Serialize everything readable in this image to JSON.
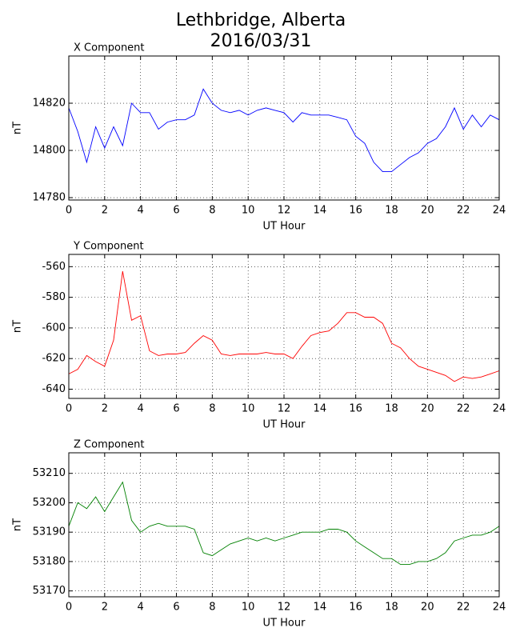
{
  "suptitle": [
    "Lethbridge, Alberta",
    "2016/03/31"
  ],
  "chart_data": [
    {
      "type": "line",
      "title": "X Component",
      "xlabel": "UT Hour",
      "ylabel": "nT",
      "color": "#0000ff",
      "grid": true,
      "xlim": [
        0,
        24
      ],
      "xticks": [
        0,
        2,
        4,
        6,
        8,
        10,
        12,
        14,
        16,
        18,
        20,
        22,
        24
      ],
      "ylim": [
        14779,
        14840
      ],
      "yticks": [
        14780,
        14800,
        14820
      ],
      "x": [
        0,
        0.5,
        1,
        1.5,
        2,
        2.5,
        3,
        3.5,
        4,
        4.5,
        5,
        5.5,
        6,
        6.5,
        7,
        7.5,
        8,
        8.5,
        9,
        9.5,
        10,
        10.5,
        11,
        11.5,
        12,
        12.5,
        13,
        13.5,
        14,
        14.5,
        15,
        15.5,
        16,
        16.5,
        17,
        17.5,
        18,
        18.5,
        19,
        19.5,
        20,
        20.5,
        21,
        21.5,
        22,
        22.5,
        23,
        23.5,
        24
      ],
      "values": [
        14818,
        14808,
        14795,
        14810,
        14801,
        14810,
        14802,
        14820,
        14816,
        14816,
        14809,
        14812,
        14813,
        14813,
        14815,
        14826,
        14820,
        14817,
        14816,
        14817,
        14815,
        14817,
        14818,
        14817,
        14816,
        14812,
        14816,
        14815,
        14815,
        14815,
        14814,
        14813,
        14806,
        14803,
        14795,
        14791,
        14791,
        14794,
        14797,
        14799,
        14803,
        14805,
        14810,
        14818,
        14809,
        14815,
        14810,
        14815,
        14813
      ]
    },
    {
      "type": "line",
      "title": "Y Component",
      "xlabel": "UT Hour",
      "ylabel": "nT",
      "color": "#ff0000",
      "grid": true,
      "xlim": [
        0,
        24
      ],
      "xticks": [
        0,
        2,
        4,
        6,
        8,
        10,
        12,
        14,
        16,
        18,
        20,
        22,
        24
      ],
      "ylim": [
        -646,
        -552
      ],
      "yticks": [
        -640,
        -620,
        -600,
        -580,
        -560
      ],
      "x": [
        0,
        0.5,
        1,
        1.5,
        2,
        2.5,
        3,
        3.5,
        4,
        4.5,
        5,
        5.5,
        6,
        6.5,
        7,
        7.5,
        8,
        8.5,
        9,
        9.5,
        10,
        10.5,
        11,
        11.5,
        12,
        12.5,
        13,
        13.5,
        14,
        14.5,
        15,
        15.5,
        16,
        16.5,
        17,
        17.5,
        18,
        18.5,
        19,
        19.5,
        20,
        20.5,
        21,
        21.5,
        22,
        22.5,
        23,
        23.5,
        24
      ],
      "values": [
        -630,
        -627,
        -618,
        -622,
        -625,
        -608,
        -563,
        -595,
        -592,
        -615,
        -618,
        -617,
        -617,
        -616,
        -610,
        -605,
        -608,
        -617,
        -618,
        -617,
        -617,
        -617,
        -616,
        -617,
        -617,
        -620,
        -612,
        -605,
        -603,
        -602,
        -597,
        -590,
        -590,
        -593,
        -593,
        -597,
        -610,
        -613,
        -620,
        -625,
        -627,
        -629,
        -631,
        -635,
        -632,
        -633,
        -632,
        -630,
        -628
      ]
    },
    {
      "type": "line",
      "title": "Z Component",
      "xlabel": "UT Hour",
      "ylabel": "nT",
      "color": "#008000",
      "grid": true,
      "xlim": [
        0,
        24
      ],
      "xticks": [
        0,
        2,
        4,
        6,
        8,
        10,
        12,
        14,
        16,
        18,
        20,
        22,
        24
      ],
      "ylim": [
        53168,
        53217
      ],
      "yticks": [
        53170,
        53180,
        53190,
        53200,
        53210
      ],
      "x": [
        0,
        0.5,
        1,
        1.5,
        2,
        2.5,
        3,
        3.5,
        4,
        4.5,
        5,
        5.5,
        6,
        6.5,
        7,
        7.5,
        8,
        8.5,
        9,
        9.5,
        10,
        10.5,
        11,
        11.5,
        12,
        12.5,
        13,
        13.5,
        14,
        14.5,
        15,
        15.5,
        16,
        16.5,
        17,
        17.5,
        18,
        18.5,
        19,
        19.5,
        20,
        20.5,
        21,
        21.5,
        22,
        22.5,
        23,
        23.5,
        24
      ],
      "values": [
        53192,
        53200,
        53198,
        53202,
        53197,
        53202,
        53207,
        53194,
        53190,
        53192,
        53193,
        53192,
        53192,
        53192,
        53191,
        53183,
        53182,
        53184,
        53186,
        53187,
        53188,
        53187,
        53188,
        53187,
        53188,
        53189,
        53190,
        53190,
        53190,
        53191,
        53191,
        53190,
        53187,
        53185,
        53183,
        53181,
        53181,
        53179,
        53179,
        53180,
        53180,
        53181,
        53183,
        53187,
        53188,
        53189,
        53189,
        53190,
        53192
      ]
    }
  ]
}
